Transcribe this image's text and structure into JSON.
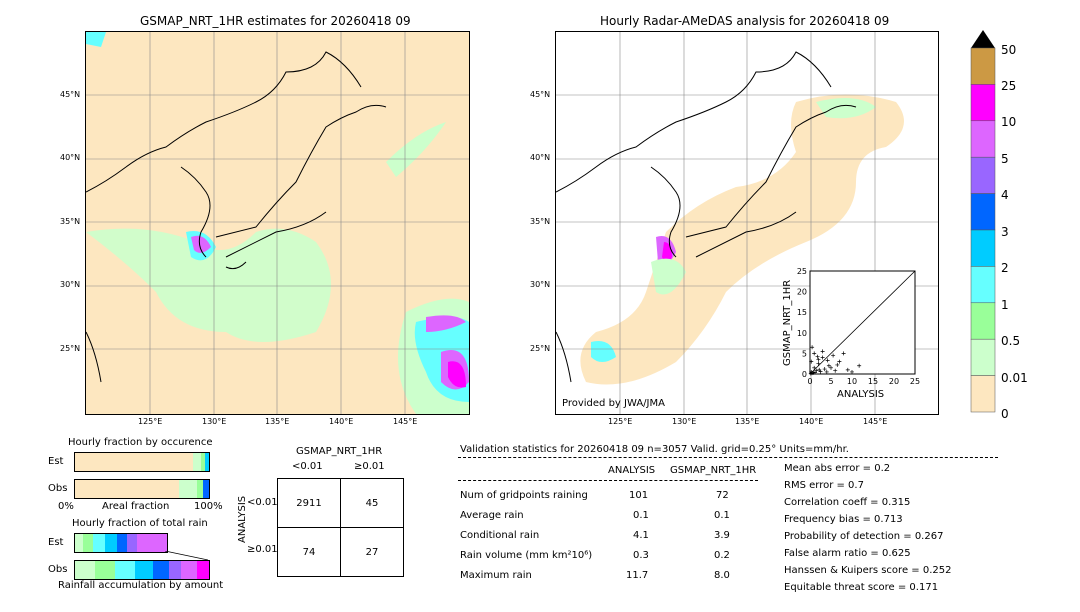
{
  "left_map": {
    "title": "GSMAP_NRT_1HR estimates for 20260418 09",
    "lat_labels": [
      "45°N",
      "40°N",
      "35°N",
      "30°N",
      "25°N"
    ],
    "lon_labels": [
      "125°E",
      "130°E",
      "135°E",
      "140°E",
      "145°E"
    ]
  },
  "right_map": {
    "title": "Hourly Radar-AMeDAS analysis for 20260418 09",
    "lat_labels": [
      "45°N",
      "40°N",
      "35°N",
      "30°N",
      "25°N"
    ],
    "lon_labels": [
      "125°E",
      "130°E",
      "135°E",
      "140°E",
      "145°E"
    ],
    "provider": "Provided by JWA/JMA"
  },
  "inset_scatter": {
    "xlabel": "ANALYSIS",
    "ylabel": "GSMAP_NRT_1HR",
    "ticks": [
      "0",
      "5",
      "10",
      "15",
      "20",
      "25"
    ]
  },
  "colorbar": {
    "labels": [
      "50",
      "25",
      "10",
      "5",
      "4",
      "3",
      "2",
      "1",
      "0.5",
      "0.01",
      "0"
    ],
    "colors": [
      "#cc9944",
      "#ff00ff",
      "#dd66ff",
      "#9966ff",
      "#0066ff",
      "#00ccff",
      "#66ffff",
      "#99ff99",
      "#ccffcc",
      "#fde7c0"
    ]
  },
  "fraction_occurrence": {
    "title": "Hourly fraction by occurence",
    "row_labels": [
      "Est",
      "Obs"
    ],
    "axis_left": "0%",
    "axis_mid": "Areal fraction",
    "axis_right": "100%"
  },
  "fraction_total": {
    "title": "Hourly fraction of total rain",
    "row_labels": [
      "Est",
      "Obs"
    ],
    "axis_label": "Rainfall accumulation by amount"
  },
  "contingency": {
    "title": "GSMAP_NRT_1HR",
    "col_headers": [
      "<0.01",
      "≥0.01"
    ],
    "row_axis": "ANALYSIS",
    "row_headers": [
      "<0.01",
      "≥0.01"
    ],
    "cells": [
      [
        "2911",
        "45"
      ],
      [
        "74",
        "27"
      ]
    ]
  },
  "validation": {
    "header": "Validation statistics for 20260418 09  n=3057 Valid. grid=0.25° Units=mm/hr.",
    "col_analysis": "ANALYSIS",
    "col_gsmap": "GSMAP_NRT_1HR",
    "rows": [
      {
        "label": "Num of gridpoints raining",
        "analysis": "101",
        "gsmap": "72"
      },
      {
        "label": "Average rain",
        "analysis": "0.1",
        "gsmap": "0.1"
      },
      {
        "label": "Conditional rain",
        "analysis": "4.1",
        "gsmap": "3.9"
      },
      {
        "label": "Rain volume (mm km²10⁶)",
        "analysis": "0.3",
        "gsmap": "0.2"
      },
      {
        "label": "Maximum rain",
        "analysis": "11.7",
        "gsmap": "8.0"
      }
    ],
    "scores": [
      "Mean abs error =    0.2",
      "RMS error =    0.7",
      "Correlation coeff =  0.315",
      "Frequency bias =  0.713",
      "Probability of detection =  0.267",
      "False alarm ratio =  0.625",
      "Hanssen & Kuipers score =  0.252",
      "Equitable threat score =  0.171"
    ]
  },
  "chart_data": {
    "type": "scatter",
    "title": "",
    "xlabel": "ANALYSIS",
    "ylabel": "GSMAP_NRT_1HR",
    "xlim": [
      0,
      25
    ],
    "ylim": [
      0,
      25
    ],
    "points": [
      [
        0.2,
        0.1
      ],
      [
        0.3,
        0.5
      ],
      [
        0.5,
        0.2
      ],
      [
        0.8,
        0.3
      ],
      [
        1.0,
        1.5
      ],
      [
        1.2,
        0.4
      ],
      [
        1.5,
        0.8
      ],
      [
        2.0,
        2.5
      ],
      [
        2.2,
        1.0
      ],
      [
        2.5,
        0.6
      ],
      [
        3.0,
        4.0
      ],
      [
        3.5,
        1.2
      ],
      [
        4.0,
        0.5
      ],
      [
        4.5,
        2.0
      ],
      [
        5.0,
        1.5
      ],
      [
        5.5,
        4.5
      ],
      [
        6.0,
        0.8
      ],
      [
        7.0,
        3.0
      ],
      [
        8.0,
        5.0
      ],
      [
        9.0,
        1.0
      ],
      [
        10.0,
        0.5
      ],
      [
        11.7,
        2.0
      ],
      [
        0.5,
        6.5
      ],
      [
        1.0,
        5.0
      ],
      [
        2.0,
        3.5
      ],
      [
        3.0,
        5.5
      ],
      [
        0.3,
        3.0
      ],
      [
        1.8,
        4.2
      ],
      [
        6.5,
        2.2
      ],
      [
        4.2,
        3.3
      ]
    ]
  }
}
